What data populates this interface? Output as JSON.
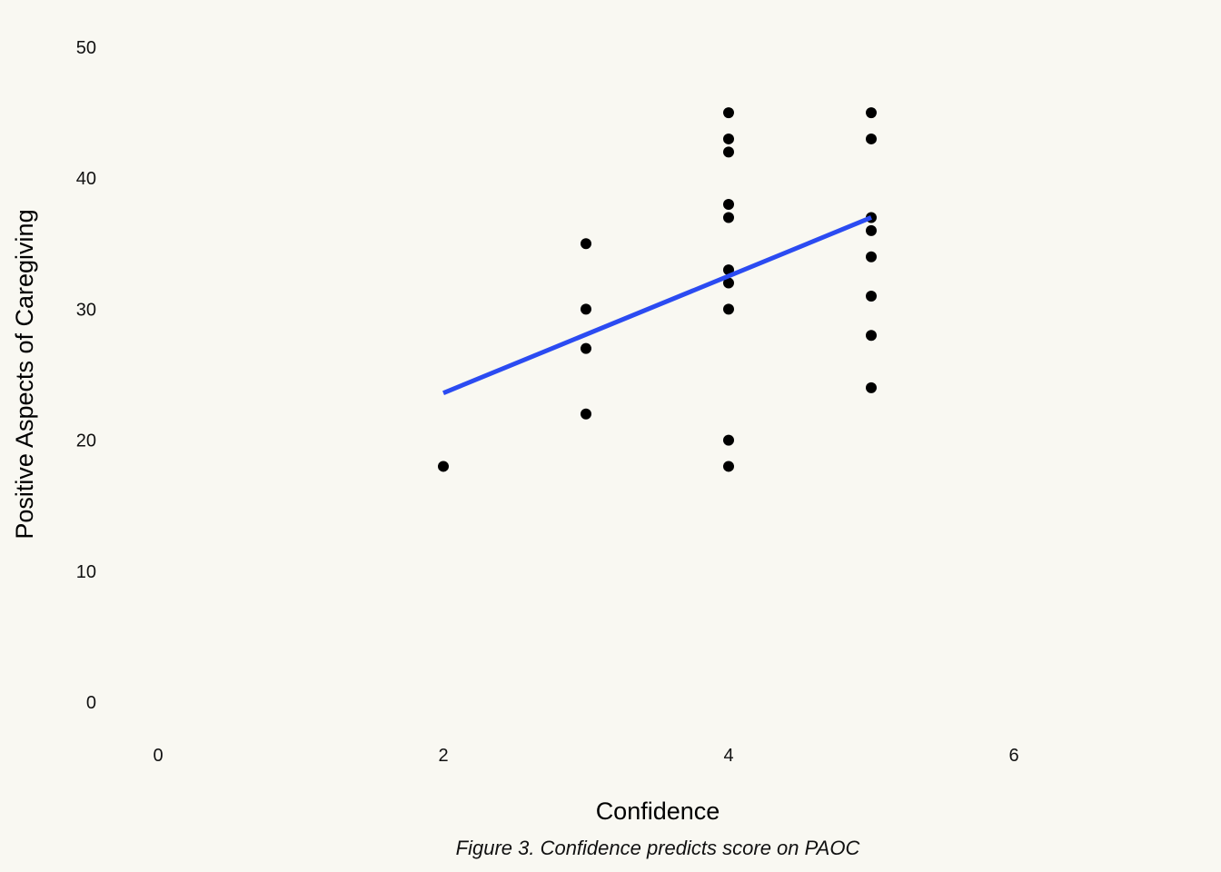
{
  "chart_data": {
    "type": "scatter",
    "title": "",
    "caption": "Figure 3. Confidence predicts score on PAOC",
    "xlabel": "Confidence",
    "ylabel": "Positive Aspects of Caregiving",
    "xlim": [
      0,
      7
    ],
    "ylim": [
      0,
      50
    ],
    "xticks": [
      0,
      2,
      4,
      6
    ],
    "yticks": [
      0,
      10,
      20,
      30,
      40,
      50
    ],
    "grid": false,
    "legend": "none",
    "series": [
      {
        "name": "observations",
        "color": "#000000",
        "points": [
          {
            "x": 2,
            "y": 18
          },
          {
            "x": 3,
            "y": 35
          },
          {
            "x": 3,
            "y": 30
          },
          {
            "x": 3,
            "y": 27
          },
          {
            "x": 3,
            "y": 22
          },
          {
            "x": 4,
            "y": 45
          },
          {
            "x": 4,
            "y": 43
          },
          {
            "x": 4,
            "y": 42
          },
          {
            "x": 4,
            "y": 38
          },
          {
            "x": 4,
            "y": 37
          },
          {
            "x": 4,
            "y": 33
          },
          {
            "x": 4,
            "y": 32
          },
          {
            "x": 4,
            "y": 30
          },
          {
            "x": 4,
            "y": 20
          },
          {
            "x": 4,
            "y": 18
          },
          {
            "x": 5,
            "y": 45
          },
          {
            "x": 5,
            "y": 43
          },
          {
            "x": 5,
            "y": 37
          },
          {
            "x": 5,
            "y": 36
          },
          {
            "x": 5,
            "y": 34
          },
          {
            "x": 5,
            "y": 31
          },
          {
            "x": 5,
            "y": 28
          },
          {
            "x": 5,
            "y": 24
          }
        ]
      }
    ],
    "trend_line": {
      "name": "linear fit",
      "color": "#2b4bf2",
      "x": [
        2,
        5
      ],
      "y": [
        23.6,
        37.0
      ]
    }
  }
}
